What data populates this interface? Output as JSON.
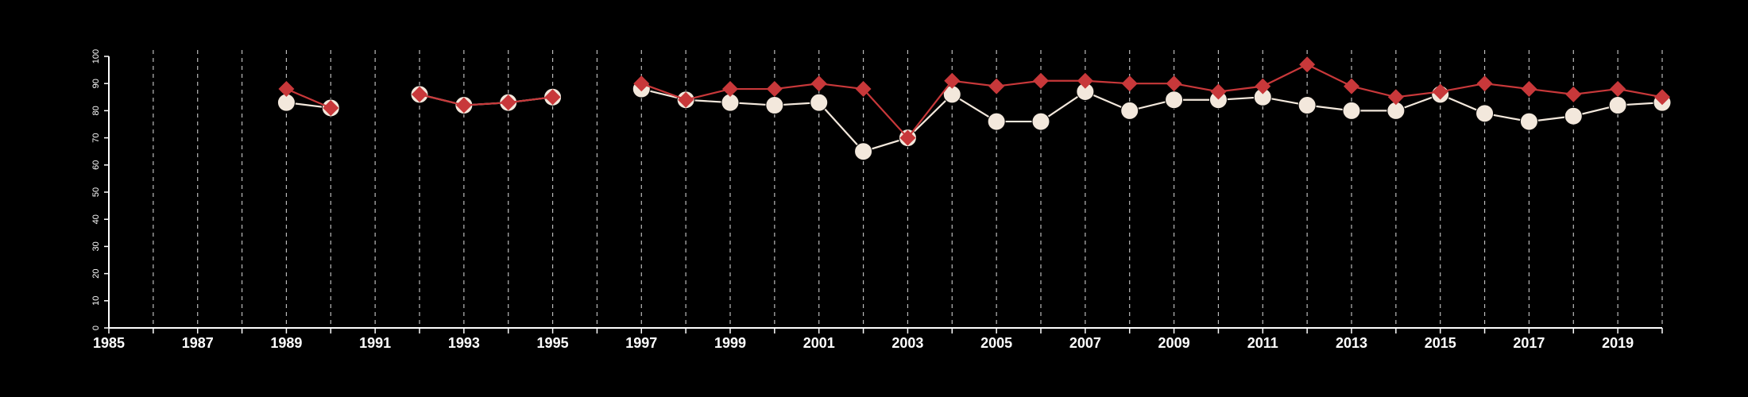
{
  "colors": {
    "background": "#000000",
    "axis": "#ffffff",
    "grid": "#bbbbbb",
    "series_a_line": "#f3e8dc",
    "series_a_marker": "#f3e8dc",
    "series_b_line": "#c8383a",
    "series_b_marker": "#c8383a"
  },
  "chart_data": {
    "type": "line",
    "title": "",
    "xlabel": "",
    "ylabel": "",
    "xlim": [
      1985,
      2020
    ],
    "ylim": [
      0,
      100
    ],
    "y_ticks": [
      0,
      10,
      20,
      30,
      40,
      50,
      60,
      70,
      80,
      90,
      100
    ],
    "x_tick_labels": [
      1985,
      1987,
      1989,
      1991,
      1993,
      1995,
      1997,
      1999,
      2001,
      2003,
      2005,
      2007,
      2009,
      2011,
      2013,
      2015,
      2017,
      2019
    ],
    "vertical_gridlines_every_year": true,
    "grid_style": "dashed vertical",
    "legend": "none",
    "series": [
      {
        "marker": "circle",
        "color_key": "series_a_line",
        "x": [
          1989,
          1990,
          1992,
          1993,
          1994,
          1995,
          1997,
          1998,
          1999,
          2000,
          2001,
          2002,
          2003,
          2004,
          2005,
          2006,
          2007,
          2008,
          2009,
          2010,
          2011,
          2012,
          2013,
          2014,
          2015,
          2016,
          2017,
          2018,
          2019,
          2020
        ],
        "values": [
          83,
          81,
          86,
          82,
          83,
          85,
          88,
          84,
          83,
          82,
          83,
          65,
          70,
          86,
          76,
          76,
          87,
          80,
          84,
          84,
          85,
          82,
          80,
          80,
          86,
          79,
          76,
          78,
          82,
          83
        ],
        "segments": [
          [
            1989,
            1990
          ],
          [
            1992,
            1993,
            1994,
            1995
          ],
          [
            1997,
            1998,
            1999,
            2000,
            2001,
            2002,
            2003,
            2004,
            2005,
            2006,
            2007,
            2008,
            2009,
            2010,
            2011,
            2012,
            2013,
            2014,
            2015,
            2016,
            2017,
            2018,
            2019,
            2020
          ]
        ]
      },
      {
        "marker": "diamond",
        "color_key": "series_b_line",
        "x": [
          1989,
          1990,
          1992,
          1993,
          1994,
          1995,
          1997,
          1998,
          1999,
          2000,
          2001,
          2002,
          2003,
          2004,
          2005,
          2006,
          2007,
          2008,
          2009,
          2010,
          2011,
          2012,
          2013,
          2014,
          2015,
          2016,
          2017,
          2018,
          2019,
          2020
        ],
        "values": [
          88,
          81,
          86,
          82,
          83,
          85,
          90,
          84,
          88,
          88,
          90,
          88,
          70,
          91,
          89,
          91,
          91,
          90,
          90,
          87,
          89,
          97,
          89,
          85,
          87,
          90,
          88,
          86,
          88,
          85
        ],
        "segments": [
          [
            1989,
            1990
          ],
          [
            1992,
            1993,
            1994,
            1995
          ],
          [
            1997,
            1998,
            1999,
            2000,
            2001,
            2002,
            2003,
            2004,
            2005,
            2006,
            2007,
            2008,
            2009,
            2010,
            2011,
            2012,
            2013,
            2014,
            2015,
            2016,
            2017,
            2018,
            2019,
            2020
          ]
        ]
      }
    ]
  }
}
